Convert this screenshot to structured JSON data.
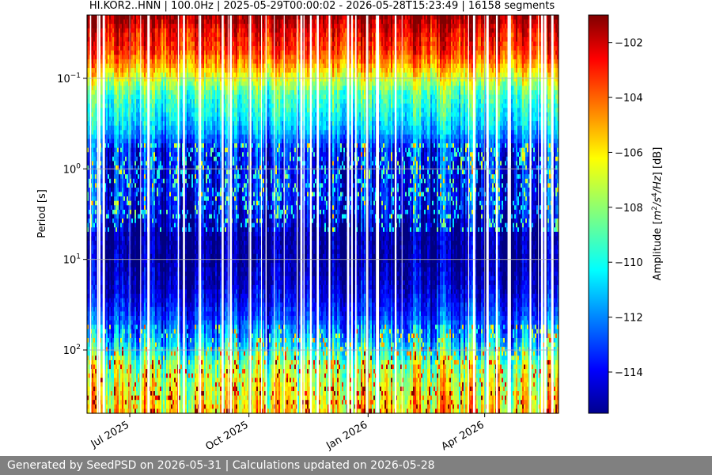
{
  "chart_data": {
    "type": "heatmap",
    "title": "HI.KOR2..HNN | 100.0Hz | 2025-05-29T00:00:02 - 2026-05-28T15:23:49 | 16158 segments",
    "ylabel": "Period [s]",
    "y_scale": "log",
    "y_inverted": true,
    "ylim": [
      0.02,
      500
    ],
    "y_ticks": [
      {
        "value": 0.1,
        "base": "10",
        "exp": "−1"
      },
      {
        "value": 1,
        "base": "10",
        "exp": "0"
      },
      {
        "value": 10,
        "base": "10",
        "exp": "1"
      },
      {
        "value": 100,
        "base": "10",
        "exp": "2"
      }
    ],
    "xlim": [
      "2025-05-29",
      "2026-05-28"
    ],
    "x_ticks": [
      {
        "date": "2025-07-01",
        "label": "Jul 2025"
      },
      {
        "date": "2025-10-01",
        "label": "Oct 2025"
      },
      {
        "date": "2026-01-01",
        "label": "Jan 2026"
      },
      {
        "date": "2026-04-01",
        "label": "Apr 2026"
      }
    ],
    "grid": true,
    "colormap": "jet",
    "colorbar": {
      "label_prefix": "Amplitude [",
      "label_unit_1": "m",
      "label_sup_1": "2",
      "label_unit_2": "/s",
      "label_sup_2": "4",
      "label_unit_3": "/Hz",
      "label_suffix": "] [dB]",
      "range": [
        -115.5,
        -101
      ],
      "ticks": [
        -102,
        -104,
        -106,
        -108,
        -110,
        -112,
        -114
      ]
    },
    "period_profile": [
      {
        "period": 0.02,
        "db": -101.2
      },
      {
        "period": 0.03,
        "db": -102.6
      },
      {
        "period": 0.05,
        "db": -103.6
      },
      {
        "period": 0.07,
        "db": -105.0
      },
      {
        "period": 0.1,
        "db": -107.0
      },
      {
        "period": 0.15,
        "db": -109.0
      },
      {
        "period": 0.25,
        "db": -110.0
      },
      {
        "period": 0.4,
        "db": -111.3
      },
      {
        "period": 0.6,
        "db": -113.2
      },
      {
        "period": 1.0,
        "db": -113.8
      },
      {
        "period": 2.0,
        "db": -113.5
      },
      {
        "period": 3.0,
        "db": -114.0
      },
      {
        "period": 5.0,
        "db": -115.0
      },
      {
        "period": 10.0,
        "db": -115.0
      },
      {
        "period": 20.0,
        "db": -114.4
      },
      {
        "period": 40.0,
        "db": -113.0
      },
      {
        "period": 70.0,
        "db": -111.5
      },
      {
        "period": 100.0,
        "db": -110.0
      },
      {
        "period": 150.0,
        "db": -108.0
      },
      {
        "period": 250.0,
        "db": -107.0
      },
      {
        "period": 500.0,
        "db": -106.0
      }
    ]
  },
  "footer": {
    "text": "Generated by SeedPSD on 2026-05-31 | Calculations updated on 2026-05-28"
  }
}
